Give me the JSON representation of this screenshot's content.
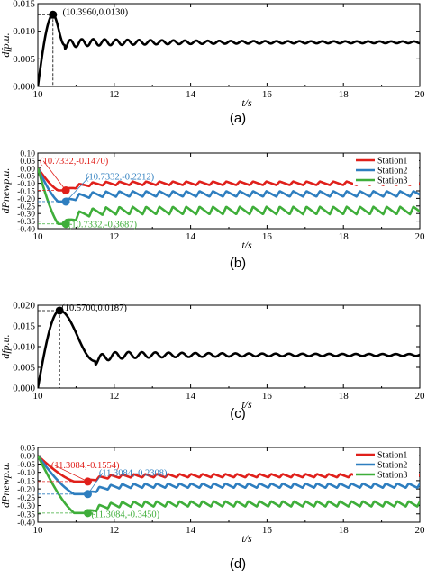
{
  "chart_data": [
    {
      "type": "line",
      "caption": "(a)",
      "xlabel": "t/s",
      "ylabel": "dfp.u.",
      "xlim": [
        10,
        20
      ],
      "ylim": [
        0,
        0.015
      ],
      "xticks": [
        10,
        12,
        14,
        16,
        18,
        20
      ],
      "yticks": [
        0,
        0.005,
        0.01,
        0.015
      ],
      "ytick_labels": [
        "0.000",
        "0.005",
        "0.010",
        "0.015"
      ],
      "legend": null,
      "series": [
        {
          "color": "#000000",
          "peak": {
            "x": 10.396,
            "y": 0.013
          },
          "start": {
            "x": 10.0,
            "y": 0.0
          },
          "settle": 0.008,
          "first_min": {
            "x": 10.7,
            "y": 0.0075
          },
          "osc_amplitude": 0.0006,
          "osc_period": 0.3
        }
      ],
      "annotations": [
        {
          "text": "(10.3960,0.0130)",
          "x": 10.396,
          "y": 0.013,
          "color": "#000000",
          "text_at": {
            "x": 10.65,
            "y": 0.013
          }
        }
      ]
    },
    {
      "type": "line",
      "caption": "(b)",
      "xlabel": "t/s",
      "ylabel": "dPnewp.u.",
      "xlim": [
        10,
        20
      ],
      "ylim": [
        -0.4,
        0.1
      ],
      "xticks": [
        10,
        12,
        14,
        16,
        18,
        20
      ],
      "yticks": [
        0.1,
        0.05,
        0.0,
        -0.05,
        -0.1,
        -0.15,
        -0.2,
        -0.25,
        -0.3,
        -0.35,
        -0.4
      ],
      "ytick_labels": [
        "0.10",
        "0.05",
        "0.00",
        "-0.05",
        "-0.10",
        "-0.15",
        "-0.20",
        "-0.25",
        "-0.30",
        "-0.35",
        "-0.40"
      ],
      "legend": [
        "Station1",
        "Station2",
        "Station3"
      ],
      "series": [
        {
          "name": "Station1",
          "color": "#e0201b",
          "start": {
            "x": 10.0,
            "y": 0.0
          },
          "dip": {
            "x": 10.7332,
            "y": -0.147
          },
          "settle": -0.1,
          "osc_amplitude": 0.012,
          "osc_period": 0.35
        },
        {
          "name": "Station2",
          "color": "#2e7ebf",
          "start": {
            "x": 10.0,
            "y": 0.0
          },
          "dip": {
            "x": 10.7332,
            "y": -0.2212
          },
          "settle": -0.17,
          "osc_amplitude": 0.018,
          "osc_period": 0.35
        },
        {
          "name": "Station3",
          "color": "#3fae3a",
          "start": {
            "x": 10.0,
            "y": 0.0
          },
          "dip": {
            "x": 10.7332,
            "y": -0.3687
          },
          "settle": -0.28,
          "osc_amplitude": 0.025,
          "osc_period": 0.35
        }
      ],
      "annotations": [
        {
          "text": "(10.7332,-0.1470)",
          "x": 10.7332,
          "y": -0.147,
          "color": "#e0201b",
          "text_at": {
            "x": 10.05,
            "y": 0.03
          }
        },
        {
          "text": "(10.7332,-0.2212)",
          "x": 10.7332,
          "y": -0.2212,
          "color": "#2e7ebf",
          "text_at": {
            "x": 11.25,
            "y": -0.075
          }
        },
        {
          "text": "(10.7332,-0.3687)",
          "x": 10.7332,
          "y": -0.3687,
          "color": "#3fae3a",
          "text_at": {
            "x": 10.8,
            "y": -0.39
          }
        }
      ]
    },
    {
      "type": "line",
      "caption": "(c)",
      "xlabel": "t/s",
      "ylabel": "dfp.u.",
      "xlim": [
        10,
        20
      ],
      "ylim": [
        0,
        0.02
      ],
      "xticks": [
        10,
        12,
        14,
        16,
        18,
        20
      ],
      "yticks": [
        0,
        0.005,
        0.01,
        0.015,
        0.02
      ],
      "ytick_labels": [
        "0.000",
        "0.005",
        "0.010",
        "0.015",
        "0.020"
      ],
      "legend": null,
      "series": [
        {
          "color": "#000000",
          "peak": {
            "x": 10.57,
            "y": 0.0187
          },
          "start": {
            "x": 10.0,
            "y": 0.0
          },
          "settle": 0.008,
          "first_min": {
            "x": 11.5,
            "y": 0.0065
          },
          "osc_amplitude": 0.0008,
          "osc_period": 0.35
        }
      ],
      "annotations": [
        {
          "text": "(10.5700,0.0187)",
          "x": 10.57,
          "y": 0.0187,
          "color": "#000000",
          "text_at": {
            "x": 10.62,
            "y": 0.0187
          }
        }
      ]
    },
    {
      "type": "line",
      "caption": "(d)",
      "xlabel": "t/s",
      "ylabel": "dPnewp.u.",
      "xlim": [
        10,
        20
      ],
      "ylim": [
        -0.4,
        0.05
      ],
      "xticks": [
        10,
        12,
        14,
        16,
        18,
        20
      ],
      "yticks": [
        0.05,
        0.0,
        -0.05,
        -0.1,
        -0.15,
        -0.2,
        -0.25,
        -0.3,
        -0.35,
        -0.4
      ],
      "ytick_labels": [
        "0.05",
        "0.00",
        "-0.05",
        "-0.10",
        "-0.15",
        "-0.20",
        "-0.25",
        "-0.30",
        "-0.35",
        "-0.40"
      ],
      "legend": [
        "Station1",
        "Station2",
        "Station3"
      ],
      "series": [
        {
          "name": "Station1",
          "color": "#e0201b",
          "start": {
            "x": 10.0,
            "y": 0.0
          },
          "dip": {
            "x": 11.3084,
            "y": -0.1554
          },
          "settle": -0.12,
          "osc_amplitude": 0.01,
          "osc_period": 0.3
        },
        {
          "name": "Station2",
          "color": "#2e7ebf",
          "start": {
            "x": 10.0,
            "y": 0.0
          },
          "dip": {
            "x": 11.3084,
            "y": -0.2308
          },
          "settle": -0.18,
          "osc_amplitude": 0.013,
          "osc_period": 0.3
        },
        {
          "name": "Station3",
          "color": "#3fae3a",
          "start": {
            "x": 10.0,
            "y": 0.0
          },
          "dip": {
            "x": 11.3084,
            "y": -0.345
          },
          "settle": -0.29,
          "osc_amplitude": 0.016,
          "osc_period": 0.3
        }
      ],
      "annotations": [
        {
          "text": "(11.3084,-0.1554)",
          "x": 11.3084,
          "y": -0.1554,
          "color": "#e0201b",
          "text_at": {
            "x": 10.35,
            "y": -0.075
          }
        },
        {
          "text": "(11.3084,-0.2308)",
          "x": 11.3084,
          "y": -0.2308,
          "color": "#2e7ebf",
          "text_at": {
            "x": 11.6,
            "y": -0.12
          }
        },
        {
          "text": "(11.3084,-0.3450)",
          "x": 11.3084,
          "y": -0.345,
          "color": "#3fae3a",
          "text_at": {
            "x": 11.4,
            "y": -0.37
          }
        }
      ]
    }
  ]
}
